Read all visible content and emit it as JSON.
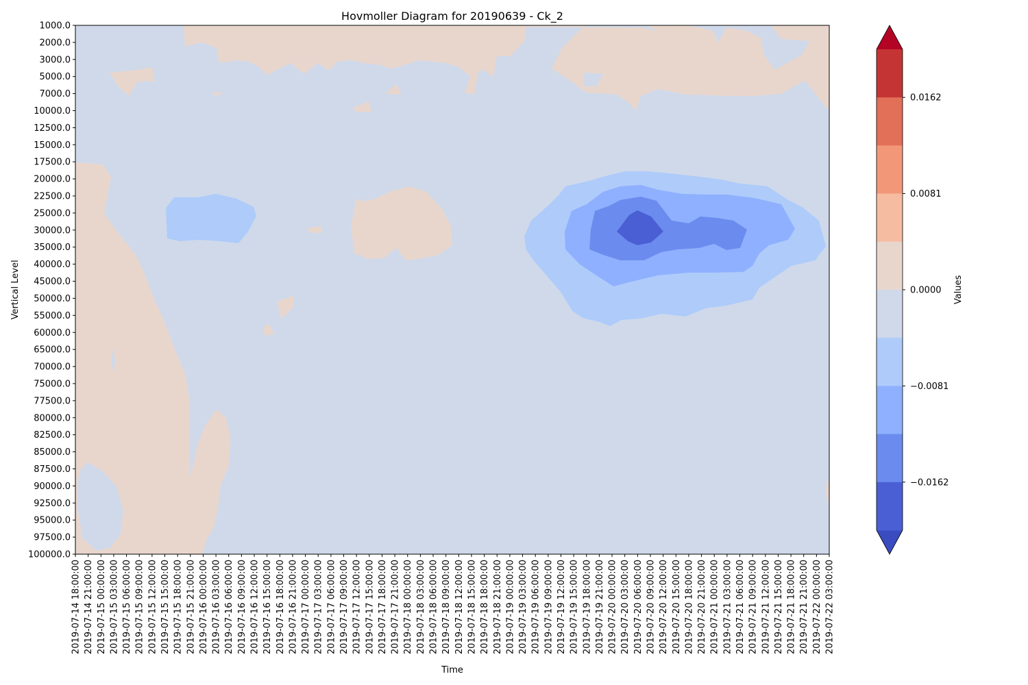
{
  "colors": {
    "levels": [
      "#3b4cc0",
      "#4a5fd4",
      "#6b8cee",
      "#8fb0fe",
      "#aecbfa",
      "#cfd9ea",
      "#e8d6cd",
      "#f6bca2",
      "#f29878",
      "#e26f58",
      "#c53434",
      "#b40426"
    ],
    "background": "#cfd9ea",
    "axis": "#000000"
  },
  "chart_data": {
    "type": "heatmap",
    "subtype": "filled-contour",
    "title": "Hovmoller Diagram for 20190639 - Ck_2",
    "xlabel": "Time",
    "ylabel": "Vertical Level",
    "colorbar_label": "Values",
    "colorbar_ticks": [
      "0.0162",
      "0.0081",
      "0.0000",
      "−0.0081",
      "−0.0162"
    ],
    "colorbar_extend": "both",
    "x_ticks": [
      "2019-07-14 18:00:00",
      "2019-07-14 21:00:00",
      "2019-07-15 00:00:00",
      "2019-07-15 03:00:00",
      "2019-07-15 06:00:00",
      "2019-07-15 09:00:00",
      "2019-07-15 12:00:00",
      "2019-07-15 15:00:00",
      "2019-07-15 18:00:00",
      "2019-07-15 21:00:00",
      "2019-07-16 00:00:00",
      "2019-07-16 03:00:00",
      "2019-07-16 06:00:00",
      "2019-07-16 09:00:00",
      "2019-07-16 12:00:00",
      "2019-07-16 15:00:00",
      "2019-07-16 18:00:00",
      "2019-07-16 21:00:00",
      "2019-07-17 00:00:00",
      "2019-07-17 03:00:00",
      "2019-07-17 06:00:00",
      "2019-07-17 09:00:00",
      "2019-07-17 12:00:00",
      "2019-07-17 15:00:00",
      "2019-07-17 18:00:00",
      "2019-07-17 21:00:00",
      "2019-07-18 00:00:00",
      "2019-07-18 03:00:00",
      "2019-07-18 06:00:00",
      "2019-07-18 09:00:00",
      "2019-07-18 12:00:00",
      "2019-07-18 15:00:00",
      "2019-07-18 18:00:00",
      "2019-07-18 21:00:00",
      "2019-07-19 00:00:00",
      "2019-07-19 03:00:00",
      "2019-07-19 06:00:00",
      "2019-07-19 09:00:00",
      "2019-07-19 12:00:00",
      "2019-07-19 15:00:00",
      "2019-07-19 18:00:00",
      "2019-07-19 21:00:00",
      "2019-07-20 00:00:00",
      "2019-07-20 03:00:00",
      "2019-07-20 06:00:00",
      "2019-07-20 09:00:00",
      "2019-07-20 12:00:00",
      "2019-07-20 15:00:00",
      "2019-07-20 18:00:00",
      "2019-07-20 21:00:00",
      "2019-07-21 00:00:00",
      "2019-07-21 03:00:00",
      "2019-07-21 06:00:00",
      "2019-07-21 09:00:00",
      "2019-07-21 12:00:00",
      "2019-07-21 15:00:00",
      "2019-07-21 18:00:00",
      "2019-07-21 21:00:00",
      "2019-07-22 00:00:00",
      "2019-07-22 03:00:00"
    ],
    "y_ticks": [
      "1000.0",
      "2000.0",
      "3000.0",
      "5000.0",
      "7000.0",
      "10000.0",
      "12500.0",
      "15000.0",
      "17500.0",
      "20000.0",
      "22500.0",
      "25000.0",
      "30000.0",
      "35000.0",
      "40000.0",
      "45000.0",
      "50000.0",
      "55000.0",
      "60000.0",
      "65000.0",
      "70000.0",
      "75000.0",
      "77500.0",
      "80000.0",
      "82500.0",
      "85000.0",
      "87500.0",
      "90000.0",
      "92500.0",
      "95000.0",
      "97500.0",
      "100000.0"
    ],
    "y_order": "increasing downward",
    "grid": false,
    "regions": [
      {
        "sign": "positive",
        "value": 0.002,
        "time_range": [
          "2019-07-14 18:00:00",
          "2019-07-16 06:00:00"
        ],
        "level_range": [
          17500,
          100000
        ]
      },
      {
        "sign": "positive",
        "value": 0.002,
        "time_range": [
          "2019-07-15 09:00:00",
          "2019-07-22 03:00:00"
        ],
        "level_range": [
          1000,
          10000
        ]
      },
      {
        "sign": "positive",
        "value": 0.002,
        "time_range": [
          "2019-07-17 12:00:00",
          "2019-07-18 09:00:00"
        ],
        "level_range": [
          20000,
          40000
        ]
      },
      {
        "sign": "positive",
        "value": 0.002,
        "time_range": [
          "2019-07-15 21:00:00",
          "2019-07-16 09:00:00"
        ],
        "level_range": [
          77500,
          100000
        ]
      },
      {
        "sign": "negative",
        "value": -0.004,
        "time_range": [
          "2019-07-15 12:00:00",
          "2019-07-16 12:00:00"
        ],
        "level_range": [
          20000,
          35000
        ]
      },
      {
        "sign": "negative",
        "value": -0.004,
        "time_range": [
          "2019-07-19 03:00:00",
          "2019-07-22 03:00:00"
        ],
        "level_range": [
          17500,
          60000
        ]
      },
      {
        "sign": "negative",
        "value": -0.012,
        "time_range": [
          "2019-07-19 12:00:00",
          "2019-07-21 21:00:00"
        ],
        "level_range": [
          22500,
          45000
        ]
      },
      {
        "sign": "negative",
        "value": -0.016,
        "time_range": [
          "2019-07-19 21:00:00",
          "2019-07-21 06:00:00"
        ],
        "level_range": [
          25000,
          40000
        ]
      },
      {
        "sign": "negative",
        "value": -0.02,
        "time_range": [
          "2019-07-20 03:00:00",
          "2019-07-20 12:00:00"
        ],
        "level_range": [
          25000,
          35000
        ]
      }
    ]
  }
}
